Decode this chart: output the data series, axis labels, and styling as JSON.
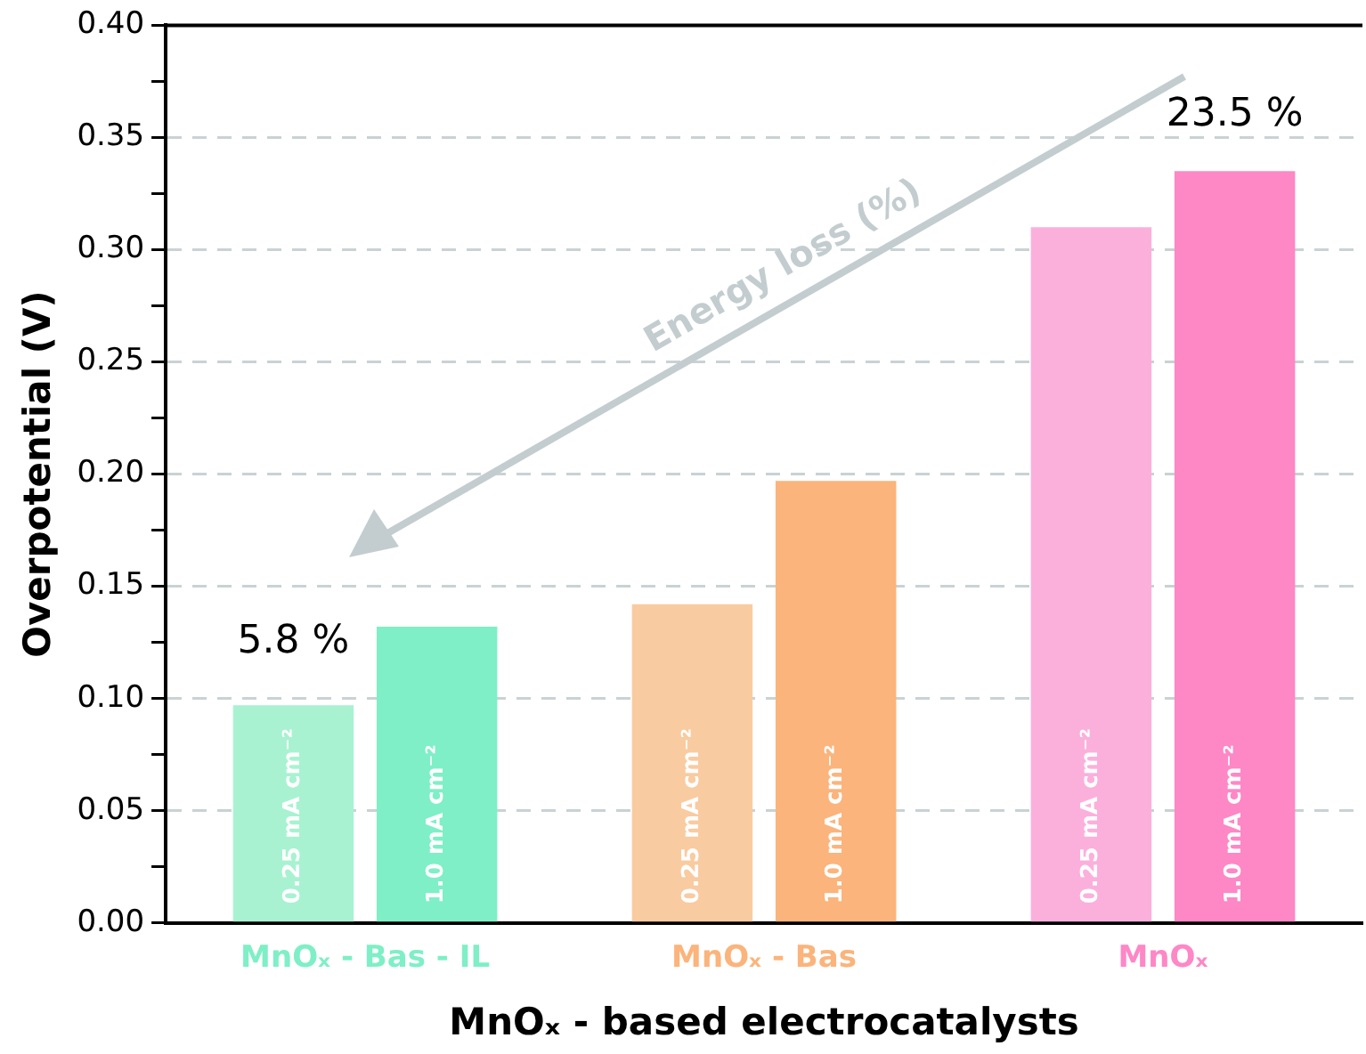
{
  "chart_data": {
    "type": "bar",
    "xlabel": "MnOₓ - based electrocatalysts",
    "ylabel": "Overpotential (V)",
    "categories": [
      "MnOₓ - Bas - IL",
      "MnOₓ - Bas",
      "MnOₓ"
    ],
    "series": [
      {
        "name": "0.25 mA cm⁻²",
        "colors": [
          "#a8f2d2",
          "#f9cba0",
          "#fbb0dc"
        ],
        "values": [
          0.097,
          0.142,
          0.31
        ]
      },
      {
        "name": "1.0 mA cm⁻²",
        "colors": [
          "#7eefc6",
          "#fbb47b",
          "#fe87c6"
        ],
        "values": [
          0.132,
          0.197,
          0.335
        ]
      }
    ],
    "ylim": [
      0,
      0.4
    ],
    "yticks": [
      {
        "value": 0,
        "label": "0.00"
      },
      {
        "value": 0.025,
        "label": null
      },
      {
        "value": 0.05,
        "label": "0.05"
      },
      {
        "value": 0.075,
        "label": null
      },
      {
        "value": 0.1,
        "label": "0.10"
      },
      {
        "value": 0.125,
        "label": null
      },
      {
        "value": 0.15,
        "label": "0.15"
      },
      {
        "value": 0.175,
        "label": null
      },
      {
        "value": 0.2,
        "label": "0.20"
      },
      {
        "value": 0.225,
        "label": null
      },
      {
        "value": 0.25,
        "label": "0.25"
      },
      {
        "value": 0.275,
        "label": null
      },
      {
        "value": 0.3,
        "label": "0.30"
      },
      {
        "value": 0.325,
        "label": null
      },
      {
        "value": 0.35,
        "label": "0.35"
      },
      {
        "value": 0.375,
        "label": null
      },
      {
        "value": 0.4,
        "label": "0.40"
      }
    ],
    "grid": "y",
    "legend": false,
    "annotations": [
      "5.8 %",
      "23.5 %",
      "Energy loss (%)"
    ]
  }
}
